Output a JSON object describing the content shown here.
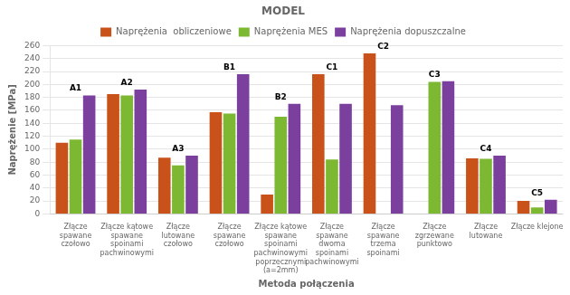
{
  "chart_data": {
    "type": "bar",
    "title": "MODEL",
    "xlabel": "Metoda połączenia",
    "ylabel": "Naprężenie [MPa]",
    "categories": [
      "Złącze\nspawane\nczołowo",
      "Złącze kątowe\nspawane\nspoinami\npachwinowymi",
      "Złącze\nlutowane\nczołowo",
      "Złącze\nspawane\nczołowo",
      "Złącze kątowe\nspawane\nspoinami\npachwinowymi\npoprzecznymi\n(a=2mm)",
      "Złącze\nspawane\ndwoma\nspoinami\npachwinowymi",
      "Złącze\nspawane\ntrzema\nspoinami",
      "Złącze\nzgrzewane\npunktowo",
      "Złącze\nlutowane",
      "Złącze klejone"
    ],
    "annotations": [
      "A1",
      "A2",
      "A3",
      "B1",
      "B2",
      "C1",
      "C2",
      "C3",
      "C4",
      "C5"
    ],
    "series": [
      {
        "name": "Naprężenia  obliczeniowe",
        "color": "#C8521A",
        "values": [
          110,
          185,
          87,
          157,
          30,
          216,
          248,
          0,
          86,
          20
        ]
      },
      {
        "name": "Naprężenia MES",
        "color": "#7CB832",
        "values": [
          115,
          183,
          75,
          155,
          150,
          84,
          0,
          204,
          85,
          10
        ]
      },
      {
        "name": "Naprężenia dopuszczalne",
        "color": "#7B3F9E",
        "values": [
          183,
          192,
          90,
          216,
          170,
          170,
          168,
          205,
          90,
          22
        ]
      }
    ],
    "ylim": [
      0,
      260
    ],
    "yticks": [
      0,
      20,
      40,
      60,
      80,
      100,
      120,
      140,
      160,
      180,
      200,
      220,
      240,
      260
    ],
    "grid": true,
    "legend": "top"
  }
}
